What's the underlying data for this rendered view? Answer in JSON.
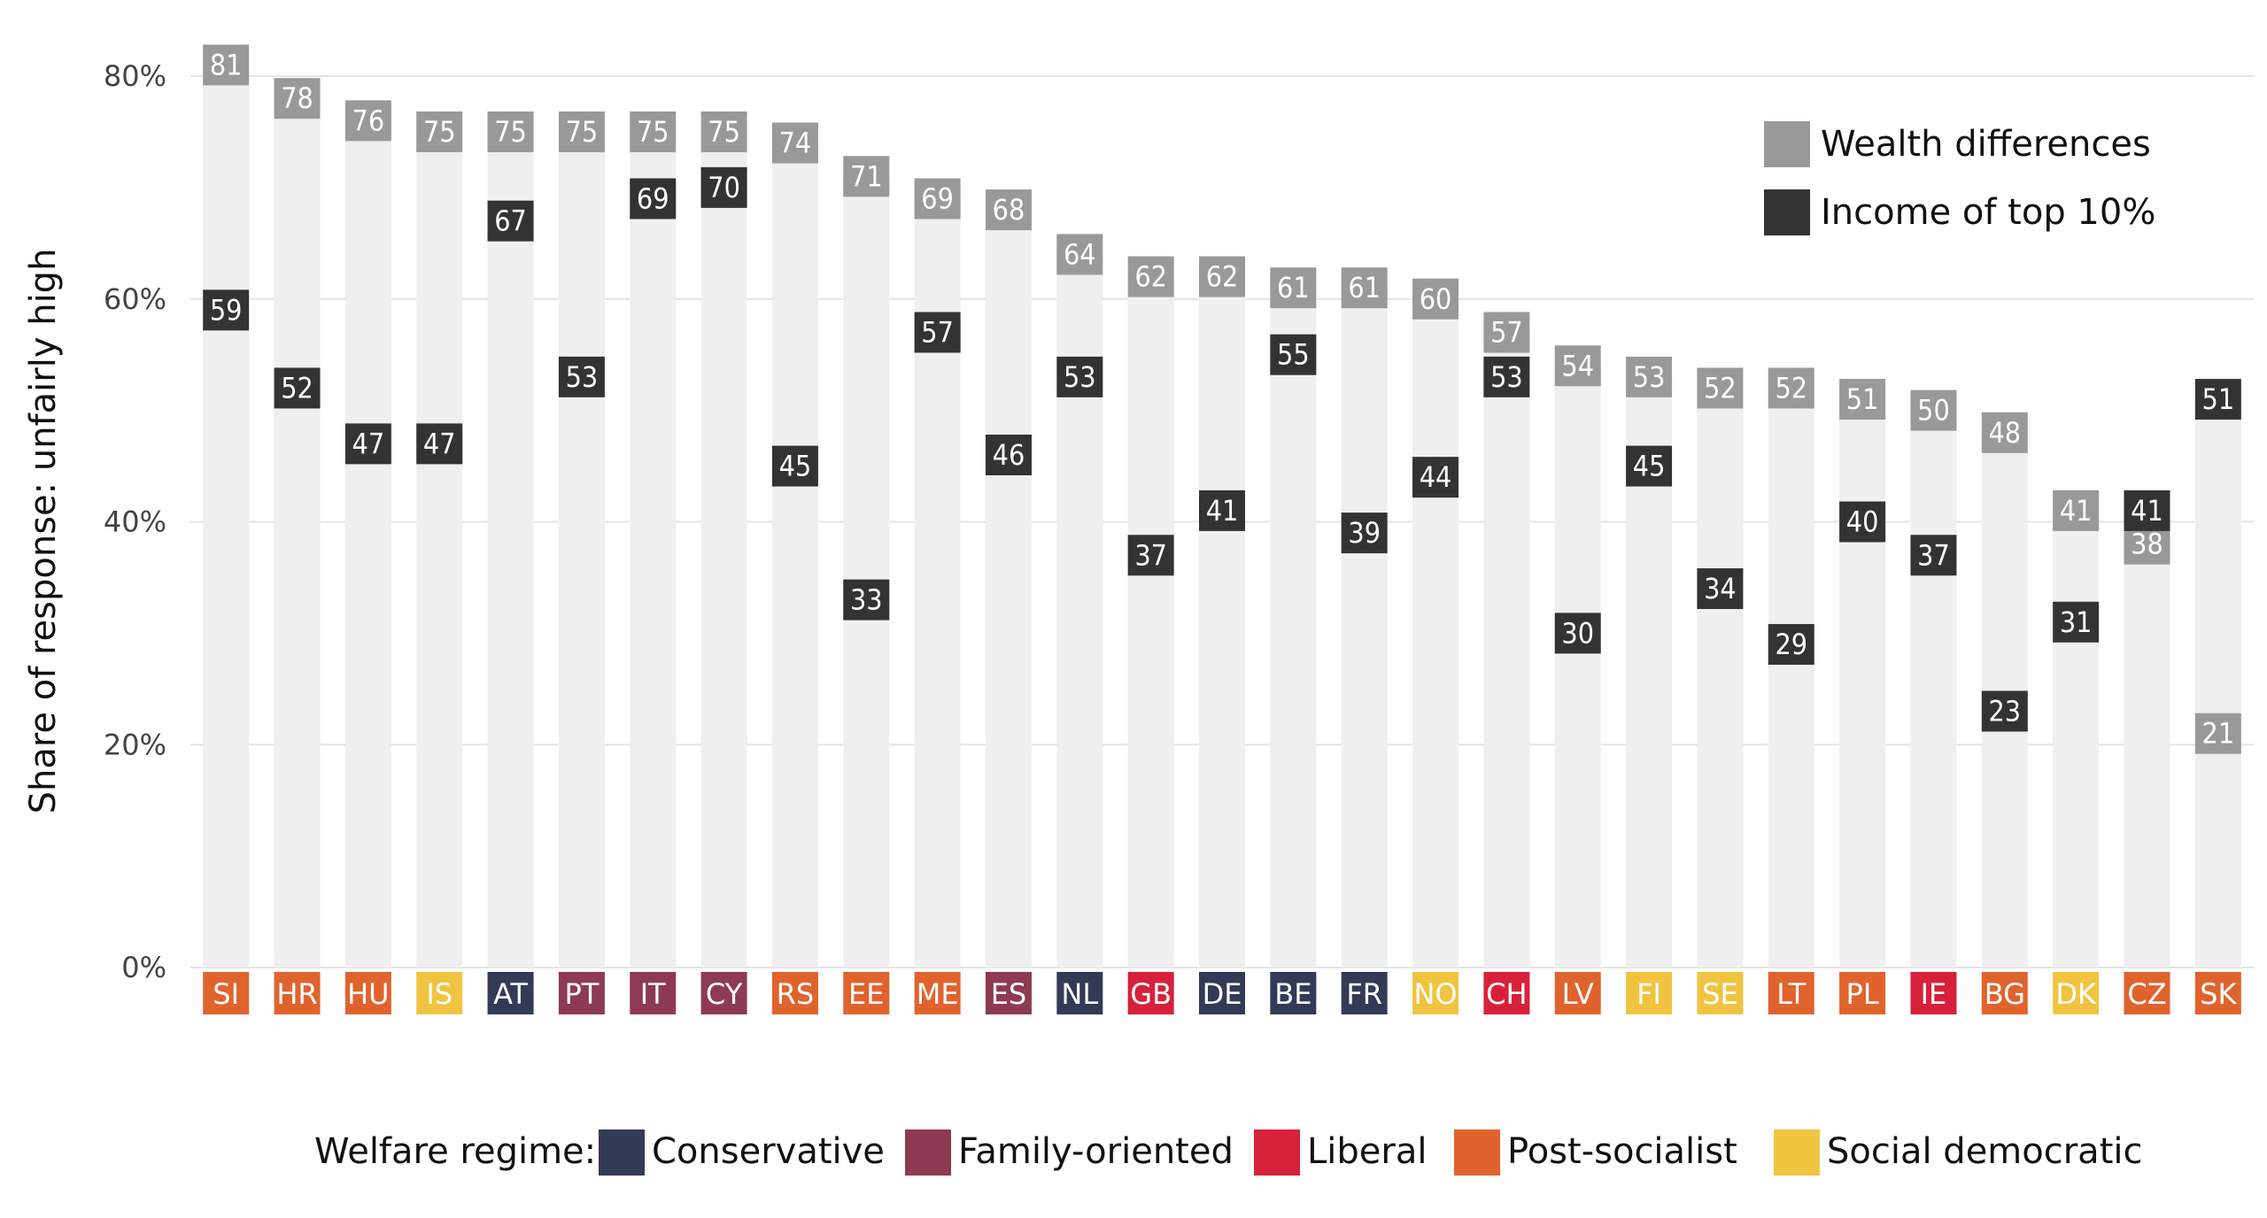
{
  "chart_data": {
    "type": "bar",
    "ylabel": "Share of response: unfairly high",
    "ylim": [
      0,
      80
    ],
    "y_ticks": [
      "0%",
      "20%",
      "40%",
      "60%",
      "80%"
    ],
    "y_tick_values": [
      0,
      20,
      40,
      60,
      80
    ],
    "grid": true,
    "categories": [
      "SI",
      "HR",
      "HU",
      "IS",
      "AT",
      "PT",
      "IT",
      "CY",
      "RS",
      "EE",
      "ME",
      "ES",
      "NL",
      "GB",
      "DE",
      "BE",
      "FR",
      "NO",
      "CH",
      "LV",
      "FI",
      "SE",
      "LT",
      "PL",
      "IE",
      "BG",
      "DK",
      "CZ",
      "SK"
    ],
    "regimes": [
      "Post-socialist",
      "Post-socialist",
      "Post-socialist",
      "Social democratic",
      "Conservative",
      "Family-oriented",
      "Family-oriented",
      "Family-oriented",
      "Post-socialist",
      "Post-socialist",
      "Post-socialist",
      "Family-oriented",
      "Conservative",
      "Liberal",
      "Conservative",
      "Conservative",
      "Conservative",
      "Social democratic",
      "Liberal",
      "Post-socialist",
      "Social democratic",
      "Social democratic",
      "Post-socialist",
      "Post-socialist",
      "Liberal",
      "Post-socialist",
      "Social democratic",
      "Post-socialist",
      "Post-socialist"
    ],
    "series": [
      {
        "name": "Wealth differences",
        "color": "#999999",
        "values": [
          81,
          78,
          76,
          75,
          75,
          75,
          75,
          75,
          74,
          71,
          69,
          68,
          64,
          62,
          62,
          61,
          61,
          60,
          57,
          54,
          53,
          52,
          52,
          51,
          50,
          48,
          41,
          38,
          21
        ]
      },
      {
        "name": "Income of top 10%",
        "color": "#333333",
        "values": [
          59,
          52,
          47,
          47,
          67,
          53,
          69,
          70,
          45,
          33,
          57,
          46,
          53,
          37,
          41,
          55,
          39,
          44,
          53,
          30,
          45,
          34,
          29,
          40,
          37,
          23,
          31,
          41,
          51
        ]
      }
    ],
    "legend_position": "top-right",
    "regime_legend": {
      "title": "Welfare regime:",
      "items": [
        {
          "name": "Conservative",
          "color": "#333a56"
        },
        {
          "name": "Family-oriented",
          "color": "#8e3a52"
        },
        {
          "name": "Liberal",
          "color": "#d7213b"
        },
        {
          "name": "Post-socialist",
          "color": "#e0632e"
        },
        {
          "name": "Social democratic",
          "color": "#f0c440"
        }
      ]
    },
    "bar_background_color": "#efefef"
  }
}
